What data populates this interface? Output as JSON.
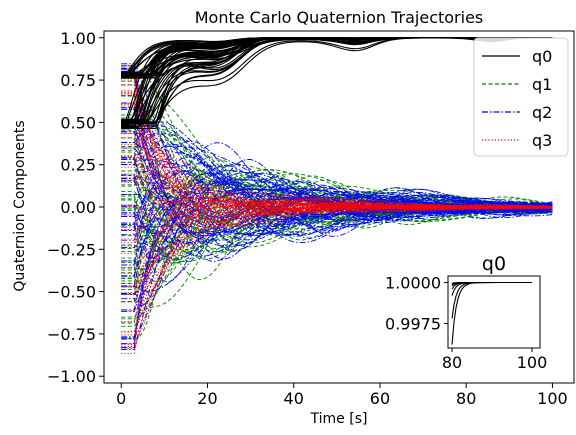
{
  "chart_data": {
    "type": "line",
    "title": "Monte Carlo Quaternion Trajectories",
    "xlabel": "Time [s]",
    "ylabel": "Quaternion Components",
    "xlim": [
      -4,
      105
    ],
    "ylim": [
      -1.04,
      1.04
    ],
    "xticks": [
      0,
      20,
      40,
      60,
      80,
      100
    ],
    "yticks": [
      -1.0,
      -0.75,
      -0.5,
      -0.25,
      0.0,
      0.25,
      0.5,
      0.75,
      1.0
    ],
    "xtick_labels": [
      "0",
      "20",
      "40",
      "60",
      "80",
      "100"
    ],
    "ytick_labels": [
      "−1.00",
      "−0.75",
      "−0.50",
      "−0.25",
      "0.00",
      "0.25",
      "0.50",
      "0.75",
      "1.00"
    ],
    "grid": false,
    "legend_position": "top-right",
    "monte_carlo_runs_shown_approx": 60,
    "series": [
      {
        "name": "q0",
        "color": "#000000",
        "style": "solid",
        "initial_value_range": [
          0.46,
          0.8
        ],
        "final_value": 1.0
      },
      {
        "name": "q1",
        "color": "#008000",
        "style": "dashed",
        "initial_value_range": [
          -0.85,
          0.85
        ],
        "final_value": 0.0
      },
      {
        "name": "q2",
        "color": "#0000ff",
        "style": "dashdot",
        "initial_value_range": [
          -0.85,
          0.85
        ],
        "final_value": 0.0
      },
      {
        "name": "q3",
        "color": "#ff0000",
        "style": "dotted",
        "initial_value_range": [
          -0.87,
          0.87
        ],
        "final_value": 0.0
      }
    ],
    "inset": {
      "title": "q0",
      "xlim": [
        79,
        102
      ],
      "ylim": [
        0.996,
        1.0004
      ],
      "xticks": [
        80,
        100
      ],
      "yticks": [
        0.9975,
        1.0
      ],
      "xtick_labels": [
        "80",
        "100"
      ],
      "ytick_labels": [
        "0.9975",
        "1.0000"
      ],
      "series_name": "q0"
    }
  }
}
